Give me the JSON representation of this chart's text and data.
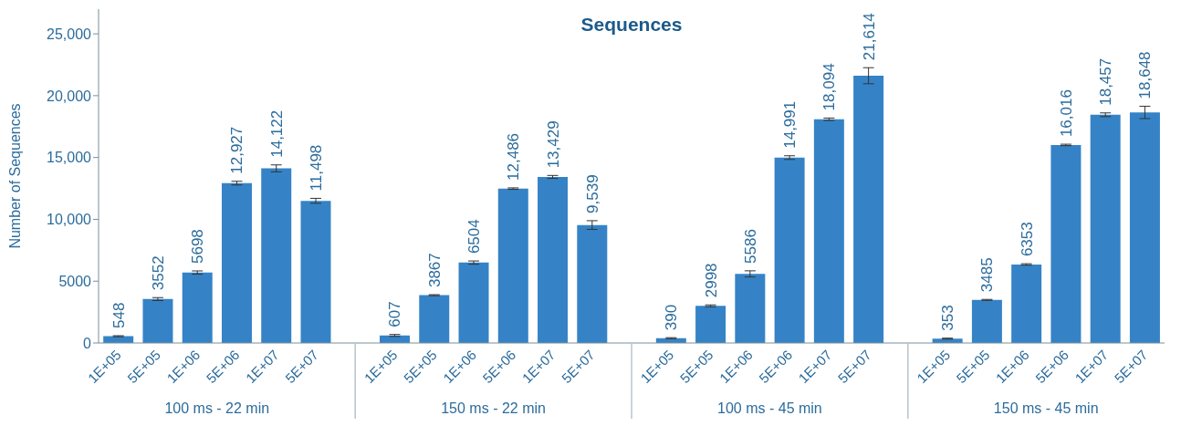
{
  "chart_data": {
    "type": "bar",
    "title": "Sequences",
    "ylabel": "Number of Sequences",
    "categories": [
      "1E+05",
      "5E+05",
      "1E+06",
      "5E+06",
      "1E+07",
      "5E+07",
      null,
      "1E+05",
      "5E+05",
      "1E+06",
      "5E+06",
      "1E+07",
      "5E+07",
      null,
      "1E+05",
      "5E+05",
      "1E+06",
      "5E+06",
      "1E+07",
      "5E+07",
      null,
      "1E+05",
      "5E+05",
      "1E+06",
      "5E+06",
      "1E+07",
      "5E+07"
    ],
    "values": [
      548,
      3552,
      5698,
      12927,
      14122,
      11498,
      null,
      607,
      3867,
      6504,
      12486,
      13429,
      9539,
      null,
      390,
      2998,
      5586,
      14991,
      18094,
      21614,
      null,
      353,
      3485,
      6353,
      16016,
      18457,
      18648
    ],
    "errors": [
      40,
      120,
      130,
      150,
      280,
      200,
      null,
      80,
      40,
      130,
      60,
      120,
      350,
      null,
      40,
      80,
      250,
      150,
      100,
      650,
      null,
      40,
      40,
      60,
      60,
      150,
      500
    ],
    "value_labels": [
      "548",
      "3552",
      "5698",
      "12,927",
      "14,122",
      "11,498",
      null,
      "607",
      "3867",
      "6504",
      "12,486",
      "13,429",
      "9,539",
      null,
      "390",
      "2998",
      "5586",
      "14,991",
      "18,094",
      "21,614",
      null,
      "353",
      "3485",
      "6353",
      "16,016",
      "18,457",
      "18,648"
    ],
    "annotations": [
      "100 ms - 22 min",
      "150 ms - 22 min",
      "100 ms - 45 min",
      "150 ms - 45 min"
    ],
    "color": "#3583c6",
    "ylim": [
      0,
      27000
    ],
    "yticks": [
      0,
      5000,
      {
        "value": 10000,
        "label": "10,000"
      },
      {
        "value": 15000,
        "label": "15,000"
      },
      {
        "value": 20000,
        "label": "20,000"
      },
      {
        "value": 25000,
        "label": "25,000"
      }
    ],
    "grid": false,
    "legend": false
  }
}
